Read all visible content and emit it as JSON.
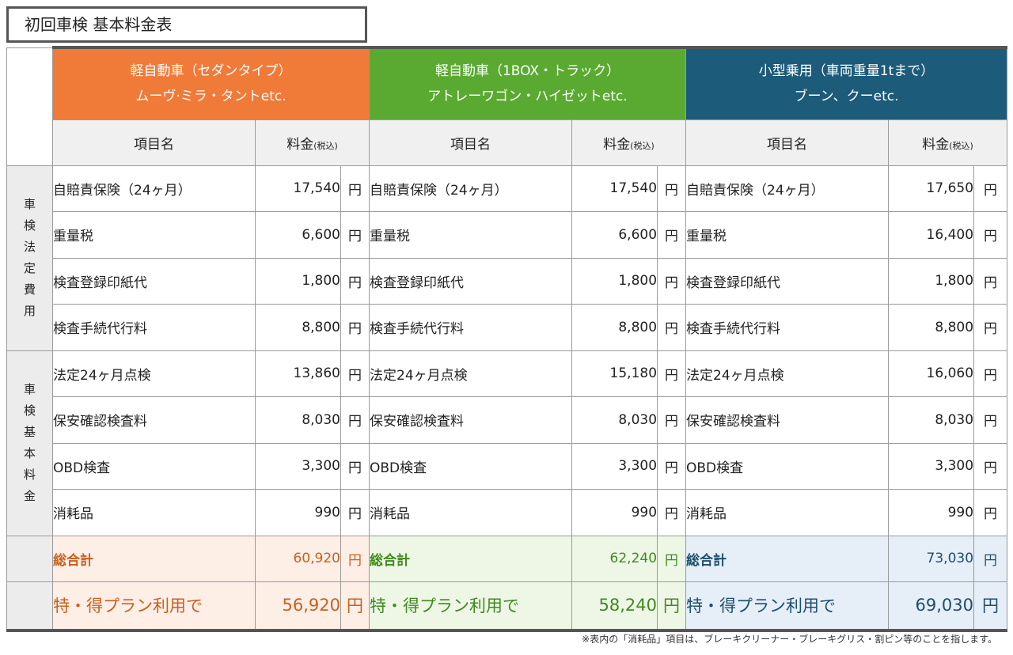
{
  "title": "初回車検 基本料金表",
  "plans": [
    {
      "line1": "軽自動車（セダンタイプ）",
      "line2": "ムーヴ·ミラ・タントetc.",
      "header_color": "#f07a37",
      "text_color": "#c9601f",
      "tint": "#fdeee6",
      "prices": [
        "17,540",
        "6,600",
        "1,800",
        "8,800",
        "13,860",
        "8,030",
        "3,300",
        "990"
      ],
      "total": "60,920",
      "special": "56,920"
    },
    {
      "line1": "軽自動車（1BOX・トラック）",
      "line2": "アトレーワゴン・ハイゼットetc.",
      "header_color": "#5aaa32",
      "text_color": "#3f8a1f",
      "tint": "#eef7e6",
      "prices": [
        "17,540",
        "6,600",
        "1,800",
        "8,800",
        "15,180",
        "8,030",
        "3,300",
        "990"
      ],
      "total": "62,240",
      "special": "58,240"
    },
    {
      "line1": "小型乗用（車両重量1tまで）",
      "line2": "ブーン、クーetc.",
      "header_color": "#1c5b7a",
      "text_color": "#1c4f6c",
      "tint": "#e6eef8",
      "prices": [
        "17,650",
        "16,400",
        "1,800",
        "8,800",
        "16,060",
        "8,030",
        "3,300",
        "990"
      ],
      "total": "73,030",
      "special": "69,030"
    }
  ],
  "column_headers": {
    "item": "項目名",
    "fee": "料金",
    "fee_sub": "(税込)"
  },
  "sections": [
    {
      "label": [
        "車",
        "検",
        "法",
        "定",
        "費",
        "用"
      ]
    },
    {
      "label": [
        "車",
        "検",
        "基",
        "本",
        "料",
        "金"
      ]
    }
  ],
  "items": [
    "自賠責保険（24ヶ月）",
    "重量税",
    "検査登録印紙代",
    "検査手続代行料",
    "法定24ヶ月点検",
    "保安確認検査料",
    "OBD検査",
    "消耗品"
  ],
  "total_label": "総合計",
  "special_label": "特・得プラン利用で",
  "unit": "円",
  "note": "※表内の「消耗品」項目は、ブレーキクリーナー・ブレーキグリス・割ピン等のことを指します。"
}
